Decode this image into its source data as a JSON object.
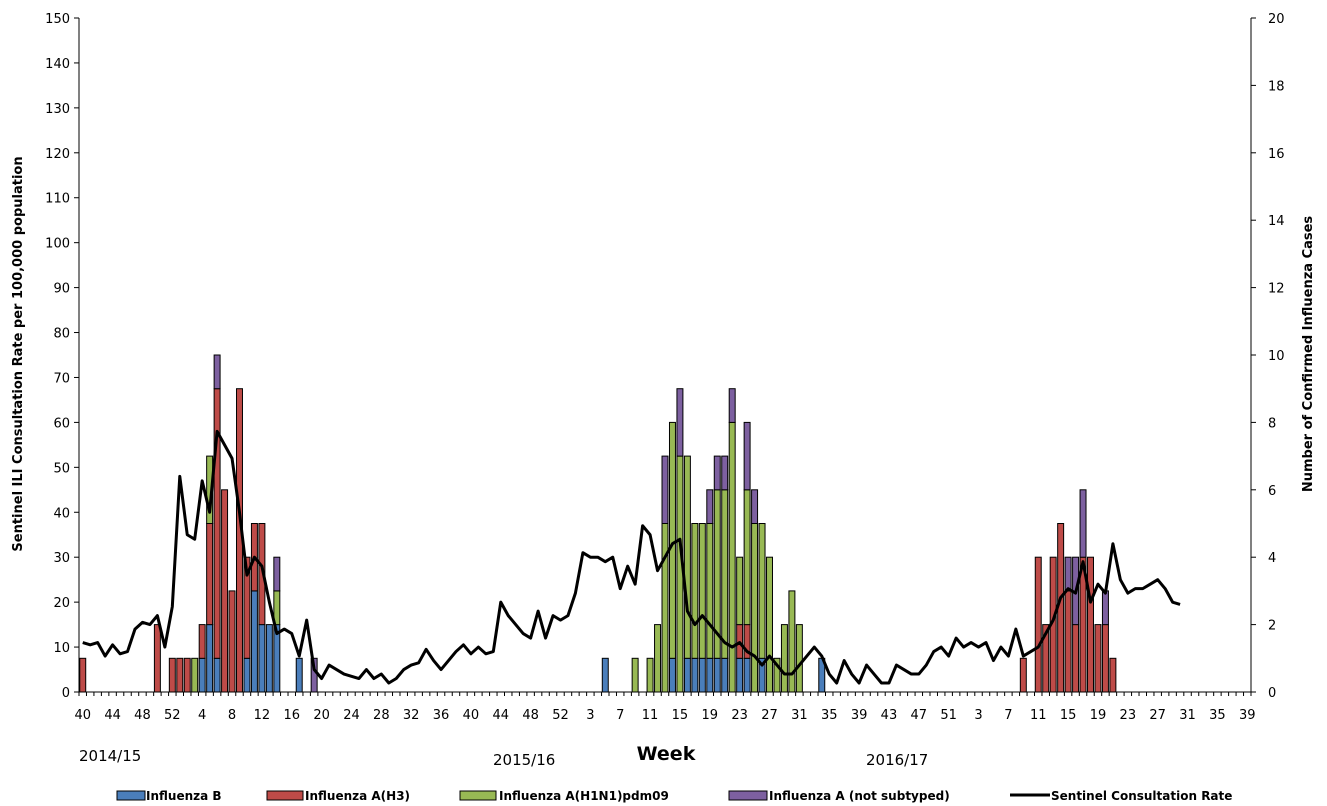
{
  "chart_data": {
    "type": "bar",
    "title": "",
    "xlabel": "Week",
    "ylabel": "Sentinel ILI Consultation Rate per 100,000 population",
    "y2label": "Number of Confirmed Influenza Cases",
    "ylim": [
      0,
      150
    ],
    "y2lim": [
      0,
      20
    ],
    "yticks": [
      0,
      10,
      20,
      30,
      40,
      50,
      60,
      70,
      80,
      90,
      100,
      110,
      120,
      130,
      140,
      150
    ],
    "y2ticks": [
      0,
      2,
      4,
      6,
      8,
      10,
      12,
      14,
      16,
      18,
      20
    ],
    "xtick_labels": [
      "40",
      "44",
      "48",
      "52",
      "4",
      "8",
      "12",
      "16",
      "20",
      "24",
      "28",
      "32",
      "36",
      "40",
      "44",
      "48",
      "52",
      "3",
      "7",
      "11",
      "15",
      "19",
      "23",
      "27",
      "31",
      "35",
      "39",
      "43",
      "47",
      "51",
      "3",
      "7",
      "11",
      "15",
      "19",
      "23",
      "27",
      "31",
      "35",
      "39"
    ],
    "season_labels": [
      "2014/15",
      "2015/16",
      "2016/17"
    ],
    "n_slots": 157,
    "grid": false,
    "legend_position": "bottom",
    "series": [
      {
        "name": "Influenza B",
        "color": "#4a7ebb",
        "type": "bar",
        "axis": "y2",
        "points": [
          [
            56,
            1
          ],
          [
            57,
            2
          ],
          [
            58,
            1
          ],
          [
            62,
            1
          ],
          [
            63,
            3
          ],
          [
            64,
            2
          ],
          [
            65,
            2
          ],
          [
            66,
            2
          ],
          [
            69,
            1
          ],
          [
            110,
            1
          ],
          [
            119,
            1
          ],
          [
            121,
            1
          ],
          [
            122,
            1
          ],
          [
            123,
            1
          ],
          [
            124,
            1
          ],
          [
            125,
            1
          ],
          [
            126,
            1
          ],
          [
            128,
            1
          ],
          [
            129,
            1
          ],
          [
            131,
            1
          ],
          [
            139,
            1
          ]
        ]
      },
      {
        "name": "Influenza A(H3)",
        "color": "#be4b48",
        "type": "bar",
        "axis": "y2",
        "points": [
          [
            40,
            1
          ],
          [
            50,
            2
          ],
          [
            52,
            1
          ],
          [
            53,
            1
          ],
          [
            54,
            1
          ],
          [
            56,
            1
          ],
          [
            57,
            3
          ],
          [
            58,
            8
          ],
          [
            59,
            6
          ],
          [
            60,
            3
          ],
          [
            61,
            9
          ],
          [
            62,
            3
          ],
          [
            63,
            2
          ],
          [
            64,
            3
          ],
          [
            128,
            1
          ],
          [
            129,
            1
          ],
          [
            166,
            1
          ],
          [
            168,
            4
          ],
          [
            169,
            2
          ],
          [
            170,
            4
          ],
          [
            171,
            5
          ],
          [
            172,
            3
          ],
          [
            173,
            2
          ],
          [
            174,
            4
          ],
          [
            175,
            4
          ],
          [
            176,
            2
          ],
          [
            177,
            2
          ],
          [
            178,
            1
          ]
        ]
      },
      {
        "name": "Influenza A(H1N1)pdm09",
        "color": "#98b954",
        "type": "bar",
        "axis": "y2",
        "points": [
          [
            55,
            1
          ],
          [
            57,
            2
          ],
          [
            66,
            1
          ],
          [
            114,
            1
          ],
          [
            116,
            1
          ],
          [
            117,
            2
          ],
          [
            118,
            5
          ],
          [
            119,
            7
          ],
          [
            120,
            7
          ],
          [
            121,
            6
          ],
          [
            122,
            4
          ],
          [
            123,
            4
          ],
          [
            124,
            4
          ],
          [
            125,
            5
          ],
          [
            126,
            5
          ],
          [
            127,
            8
          ],
          [
            128,
            2
          ],
          [
            129,
            4
          ],
          [
            130,
            5
          ],
          [
            131,
            4
          ],
          [
            132,
            4
          ],
          [
            133,
            1
          ],
          [
            134,
            2
          ],
          [
            135,
            3
          ],
          [
            136,
            2
          ]
        ]
      },
      {
        "name": "Influenza A (not subtyped)",
        "color": "#7d60a0",
        "type": "bar",
        "axis": "y2",
        "points": [
          [
            58,
            1
          ],
          [
            66,
            1
          ],
          [
            71,
            1
          ],
          [
            118,
            2
          ],
          [
            120,
            2
          ],
          [
            124,
            1
          ],
          [
            125,
            1
          ],
          [
            126,
            1
          ],
          [
            127,
            1
          ],
          [
            129,
            2
          ],
          [
            130,
            1
          ],
          [
            172,
            1
          ],
          [
            173,
            2
          ],
          [
            174,
            2
          ],
          [
            177,
            1
          ]
        ]
      },
      {
        "name": "Sentinel Consultation Rate",
        "color": "#000000",
        "type": "line",
        "axis": "y",
        "points": [
          [
            40,
            11
          ],
          [
            41,
            10.5
          ],
          [
            42,
            11
          ],
          [
            43,
            8
          ],
          [
            44,
            10.5
          ],
          [
            45,
            8.5
          ],
          [
            46,
            9
          ],
          [
            47,
            14
          ],
          [
            48,
            15.5
          ],
          [
            49,
            15
          ],
          [
            50,
            17
          ],
          [
            51,
            10
          ],
          [
            52,
            19
          ],
          [
            53,
            48
          ],
          [
            54,
            35
          ],
          [
            55,
            34
          ],
          [
            56,
            47
          ],
          [
            57,
            40
          ],
          [
            58,
            58
          ],
          [
            59,
            55
          ],
          [
            60,
            52
          ],
          [
            61,
            40
          ],
          [
            62,
            26
          ],
          [
            63,
            30
          ],
          [
            64,
            28
          ],
          [
            65,
            20
          ],
          [
            66,
            13
          ],
          [
            67,
            14
          ],
          [
            68,
            13
          ],
          [
            69,
            8
          ],
          [
            70,
            16
          ],
          [
            71,
            5
          ],
          [
            72,
            3
          ],
          [
            73,
            6
          ],
          [
            74,
            5
          ],
          [
            75,
            4
          ],
          [
            76,
            3.5
          ],
          [
            77,
            3
          ],
          [
            78,
            5
          ],
          [
            79,
            3
          ],
          [
            80,
            4
          ],
          [
            81,
            2
          ],
          [
            82,
            3
          ],
          [
            83,
            5
          ],
          [
            84,
            6
          ],
          [
            85,
            6.5
          ],
          [
            86,
            9.5
          ],
          [
            87,
            7
          ],
          [
            88,
            5
          ],
          [
            89,
            7
          ],
          [
            90,
            9
          ],
          [
            91,
            10.5
          ],
          [
            92,
            8.5
          ],
          [
            93,
            10
          ],
          [
            94,
            8.5
          ],
          [
            95,
            9
          ],
          [
            96,
            20
          ],
          [
            97,
            17
          ],
          [
            98,
            15
          ],
          [
            99,
            13
          ],
          [
            100,
            12
          ],
          [
            101,
            18
          ],
          [
            102,
            12
          ],
          [
            103,
            17
          ],
          [
            104,
            16
          ],
          [
            105,
            17
          ],
          [
            106,
            22
          ],
          [
            107,
            31
          ],
          [
            108,
            30
          ],
          [
            109,
            30
          ],
          [
            110,
            29
          ],
          [
            111,
            30
          ],
          [
            112,
            23
          ],
          [
            113,
            28
          ],
          [
            114,
            24
          ],
          [
            115,
            37
          ],
          [
            116,
            35
          ],
          [
            117,
            27
          ],
          [
            118,
            30
          ],
          [
            119,
            33
          ],
          [
            120,
            34
          ],
          [
            121,
            18
          ],
          [
            122,
            15
          ],
          [
            123,
            17
          ],
          [
            124,
            15
          ],
          [
            125,
            13
          ],
          [
            126,
            11
          ],
          [
            127,
            10
          ],
          [
            128,
            11
          ],
          [
            129,
            9
          ],
          [
            130,
            8
          ],
          [
            131,
            6
          ],
          [
            132,
            8
          ],
          [
            133,
            6
          ],
          [
            134,
            4
          ],
          [
            135,
            4
          ],
          [
            136,
            6
          ],
          [
            137,
            8
          ],
          [
            138,
            10
          ],
          [
            139,
            8
          ],
          [
            140,
            4
          ],
          [
            141,
            2
          ],
          [
            142,
            7
          ],
          [
            143,
            4
          ],
          [
            144,
            2
          ],
          [
            145,
            6
          ],
          [
            146,
            4
          ],
          [
            147,
            2
          ],
          [
            148,
            2
          ],
          [
            149,
            6
          ],
          [
            150,
            5
          ],
          [
            151,
            4
          ],
          [
            152,
            4
          ],
          [
            153,
            6
          ],
          [
            154,
            9
          ],
          [
            155,
            10
          ],
          [
            156,
            8
          ],
          [
            157,
            12
          ],
          [
            158,
            10
          ],
          [
            159,
            11
          ],
          [
            160,
            10
          ],
          [
            161,
            11
          ],
          [
            162,
            7
          ],
          [
            163,
            10
          ],
          [
            164,
            8
          ],
          [
            165,
            14
          ],
          [
            166,
            8
          ],
          [
            167,
            9
          ],
          [
            168,
            10
          ],
          [
            169,
            13
          ],
          [
            170,
            16
          ],
          [
            171,
            21
          ],
          [
            172,
            23
          ],
          [
            173,
            22
          ],
          [
            174,
            29
          ],
          [
            175,
            20
          ],
          [
            176,
            24
          ],
          [
            177,
            22
          ],
          [
            178,
            33
          ],
          [
            179,
            25
          ],
          [
            180,
            22
          ],
          [
            181,
            23
          ],
          [
            182,
            23
          ],
          [
            183,
            24
          ],
          [
            184,
            25
          ],
          [
            185,
            23
          ],
          [
            186,
            20
          ],
          [
            187,
            19.5
          ]
        ]
      }
    ]
  }
}
